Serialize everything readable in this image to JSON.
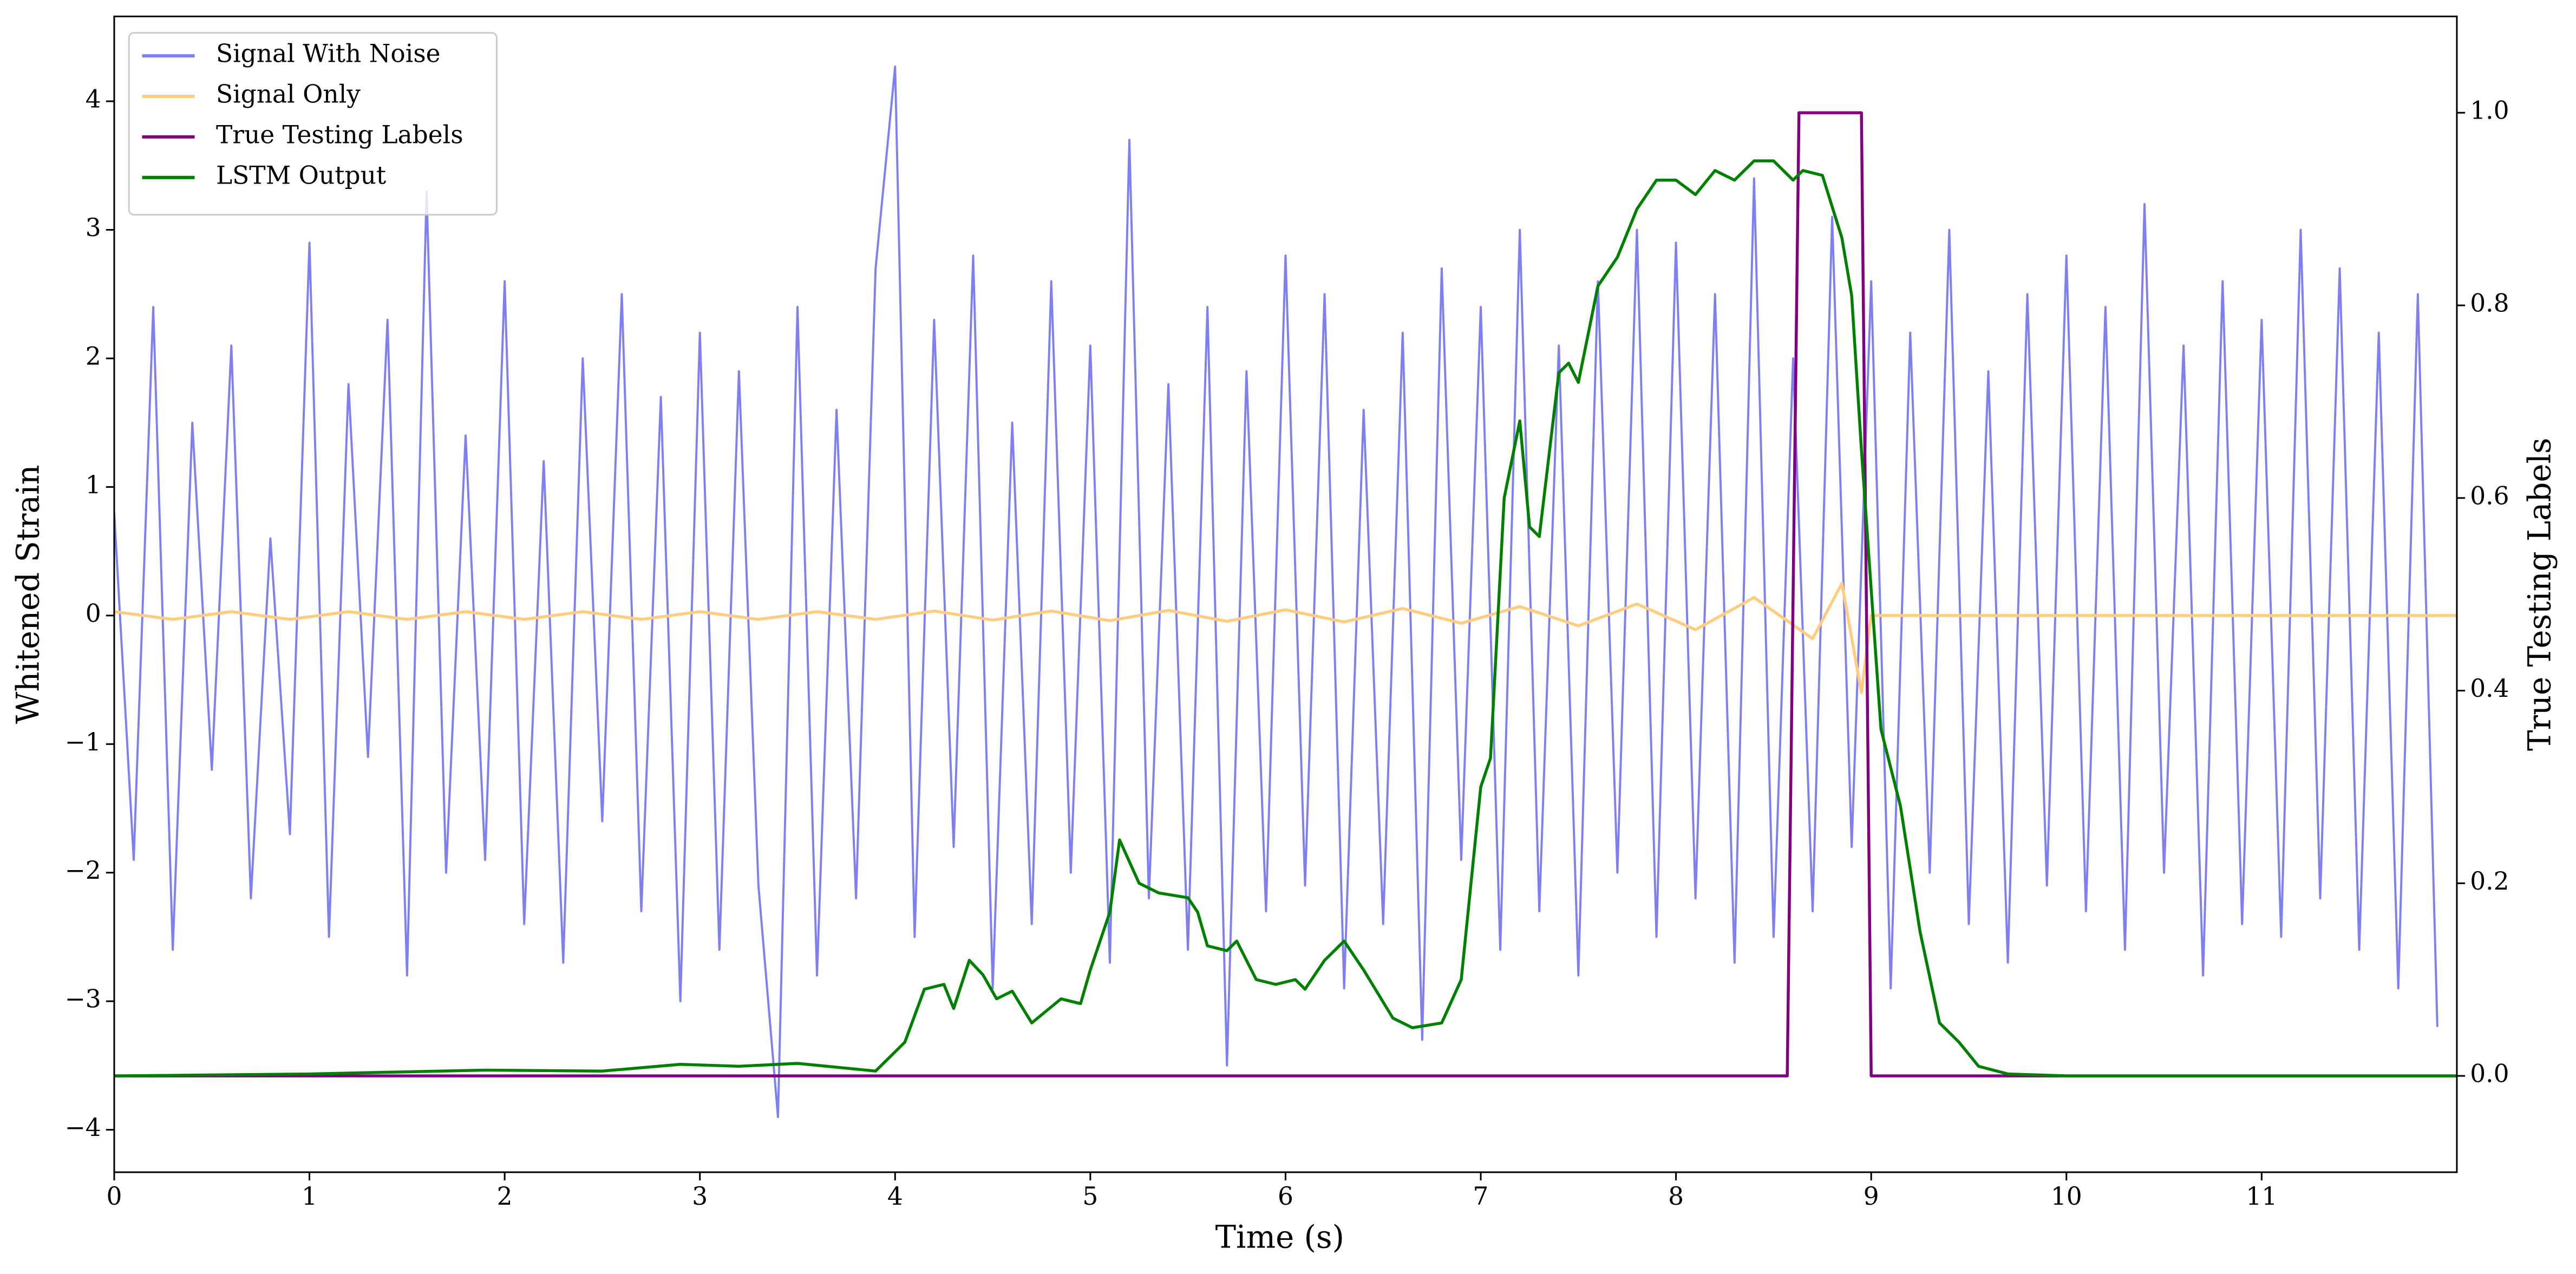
{
  "chart_data": {
    "type": "line",
    "xlabel": "Time (s)",
    "ylabel": "Whitened Strain",
    "y2label": "True Testing Labels",
    "xlim": [
      0,
      12
    ],
    "ylim": [
      -4.33,
      4.66
    ],
    "y2lim": [
      -0.1,
      1.1
    ],
    "xticks": [
      0,
      1,
      2,
      3,
      4,
      5,
      6,
      7,
      8,
      9,
      10,
      11
    ],
    "yticks": [
      {
        "value": -4,
        "label": "−4"
      },
      {
        "value": -3,
        "label": "−3"
      },
      {
        "value": -2,
        "label": "−2"
      },
      {
        "value": -1,
        "label": "−1"
      },
      0,
      1,
      2,
      3,
      4
    ],
    "y2ticks": [
      {
        "value": 0,
        "label": "0.0"
      },
      {
        "value": 0.2,
        "label": "0.2"
      },
      {
        "value": 0.4,
        "label": "0.4"
      },
      {
        "value": 0.6,
        "label": "0.6"
      },
      {
        "value": 0.8,
        "label": "0.8"
      },
      {
        "value": 1.0,
        "label": "1.0"
      }
    ],
    "legend": "upper left",
    "series": [
      {
        "name": "Signal With Noise",
        "color": "#7f7ff5",
        "axis": "y",
        "x": [
          0,
          0.1,
          0.2,
          0.3,
          0.4,
          0.5,
          0.6,
          0.7,
          0.8,
          0.9,
          1,
          1.1,
          1.2,
          1.3,
          1.4,
          1.5,
          1.6,
          1.7,
          1.8,
          1.9,
          2,
          2.1,
          2.2,
          2.3,
          2.4,
          2.5,
          2.6,
          2.7,
          2.8,
          2.9,
          3,
          3.1,
          3.2,
          3.3,
          3.4,
          3.5,
          3.6,
          3.7,
          3.8,
          3.9,
          4,
          4.1,
          4.2,
          4.3,
          4.4,
          4.5,
          4.6,
          4.7,
          4.8,
          4.9,
          5,
          5.1,
          5.2,
          5.3,
          5.4,
          5.5,
          5.6,
          5.7,
          5.8,
          5.9,
          6,
          6.1,
          6.2,
          6.3,
          6.4,
          6.5,
          6.6,
          6.7,
          6.8,
          6.9,
          7,
          7.1,
          7.2,
          7.3,
          7.4,
          7.5,
          7.6,
          7.7,
          7.8,
          7.9,
          8,
          8.1,
          8.2,
          8.3,
          8.4,
          8.5,
          8.6,
          8.7,
          8.8,
          8.9,
          9,
          9.1,
          9.2,
          9.3,
          9.4,
          9.5,
          9.6,
          9.7,
          9.8,
          9.9,
          10,
          10.1,
          10.2,
          10.3,
          10.4,
          10.5,
          10.6,
          10.7,
          10.8,
          10.9,
          11,
          11.1,
          11.2,
          11.3,
          11.4,
          11.5,
          11.6,
          11.7,
          11.8,
          11.9
        ],
        "values": [
          0.8,
          -1.9,
          2.4,
          -2.6,
          1.5,
          -1.2,
          2.1,
          -2.2,
          0.6,
          -1.7,
          2.9,
          -2.5,
          1.8,
          -1.1,
          2.3,
          -2.8,
          3.3,
          -2.0,
          1.4,
          -1.9,
          2.6,
          -2.4,
          1.2,
          -2.7,
          2.0,
          -1.6,
          2.5,
          -2.3,
          1.7,
          -3.0,
          2.2,
          -2.6,
          1.9,
          -2.1,
          -3.9,
          2.4,
          -2.8,
          1.6,
          -2.2,
          2.7,
          4.27,
          -2.5,
          2.3,
          -1.8,
          2.8,
          -2.9,
          1.5,
          -2.4,
          2.6,
          -2.0,
          2.1,
          -2.7,
          3.7,
          -2.2,
          1.8,
          -2.6,
          2.4,
          -3.5,
          1.9,
          -2.3,
          2.8,
          -2.1,
          2.5,
          -2.9,
          1.6,
          -2.4,
          2.2,
          -3.3,
          2.7,
          -1.9,
          2.4,
          -2.6,
          3.0,
          -2.3,
          2.1,
          -2.8,
          2.6,
          -2.0,
          3.0,
          -2.5,
          2.9,
          -2.2,
          2.5,
          -2.7,
          3.4,
          -2.5,
          2.0,
          -2.3,
          3.1,
          -1.8,
          2.6,
          -2.9,
          2.2,
          -2.0,
          3.0,
          -2.4,
          1.9,
          -2.7,
          2.5,
          -2.1,
          2.8,
          -2.3,
          2.4,
          -2.6,
          3.2,
          -2.0,
          2.1,
          -2.8,
          2.6,
          -2.4,
          2.3,
          -2.5,
          3.0,
          -2.2,
          2.7,
          -2.6,
          2.2,
          -2.9,
          2.5,
          -3.2
        ]
      },
      {
        "name": "Signal Only",
        "color": "#ffcc80",
        "axis": "y",
        "x": [
          0,
          0.3,
          0.6,
          0.9,
          1.2,
          1.5,
          1.8,
          2.1,
          2.4,
          2.7,
          3,
          3.3,
          3.6,
          3.9,
          4.2,
          4.5,
          4.8,
          5.1,
          5.4,
          5.7,
          6,
          6.3,
          6.6,
          6.9,
          7.2,
          7.5,
          7.8,
          8.1,
          8.4,
          8.7,
          8.85,
          8.95,
          9,
          12
        ],
        "values": [
          0.03,
          -0.03,
          0.03,
          -0.03,
          0.03,
          -0.03,
          0.03,
          -0.03,
          0.03,
          -0.03,
          0.03,
          -0.03,
          0.03,
          -0.03,
          0.035,
          -0.035,
          0.035,
          -0.04,
          0.04,
          -0.045,
          0.045,
          -0.05,
          0.055,
          -0.06,
          0.07,
          -0.08,
          0.09,
          -0.11,
          0.14,
          -0.18,
          0.25,
          -0.6,
          0,
          0
        ]
      },
      {
        "name": "True Testing Labels",
        "color": "#800080",
        "axis": "y2",
        "x": [
          0,
          8.57,
          8.63,
          8.95,
          9.0,
          11.99
        ],
        "values": [
          0,
          0,
          1,
          1,
          0,
          0
        ]
      },
      {
        "name": "LSTM Output",
        "color": "#008000",
        "axis": "y2",
        "x": [
          0,
          1,
          1.9,
          2.5,
          2.9,
          3.2,
          3.5,
          3.9,
          4.05,
          4.15,
          4.25,
          4.3,
          4.38,
          4.45,
          4.52,
          4.6,
          4.7,
          4.85,
          4.95,
          5.0,
          5.1,
          5.15,
          5.25,
          5.35,
          5.5,
          5.55,
          5.6,
          5.7,
          5.75,
          5.85,
          5.95,
          6.05,
          6.1,
          6.2,
          6.3,
          6.4,
          6.55,
          6.65,
          6.8,
          6.9,
          7.0,
          7.05,
          7.12,
          7.2,
          7.25,
          7.3,
          7.4,
          7.45,
          7.5,
          7.6,
          7.7,
          7.8,
          7.9,
          8.0,
          8.1,
          8.2,
          8.3,
          8.4,
          8.5,
          8.6,
          8.65,
          8.75,
          8.85,
          8.9,
          8.95,
          9.05,
          9.15,
          9.25,
          9.35,
          9.45,
          9.55,
          9.7,
          10,
          12
        ],
        "values": [
          0,
          0.002,
          0.006,
          0.005,
          0.012,
          0.01,
          0.013,
          0.005,
          0.035,
          0.09,
          0.095,
          0.07,
          0.12,
          0.105,
          0.08,
          0.088,
          0.055,
          0.08,
          0.075,
          0.11,
          0.17,
          0.245,
          0.2,
          0.19,
          0.185,
          0.17,
          0.135,
          0.13,
          0.14,
          0.1,
          0.095,
          0.1,
          0.09,
          0.12,
          0.14,
          0.11,
          0.06,
          0.05,
          0.055,
          0.1,
          0.3,
          0.33,
          0.6,
          0.68,
          0.57,
          0.56,
          0.73,
          0.74,
          0.72,
          0.82,
          0.85,
          0.9,
          0.93,
          0.93,
          0.915,
          0.94,
          0.93,
          0.95,
          0.95,
          0.93,
          0.94,
          0.935,
          0.87,
          0.81,
          0.65,
          0.36,
          0.28,
          0.15,
          0.055,
          0.035,
          0.01,
          0.002,
          0,
          0
        ]
      }
    ]
  }
}
